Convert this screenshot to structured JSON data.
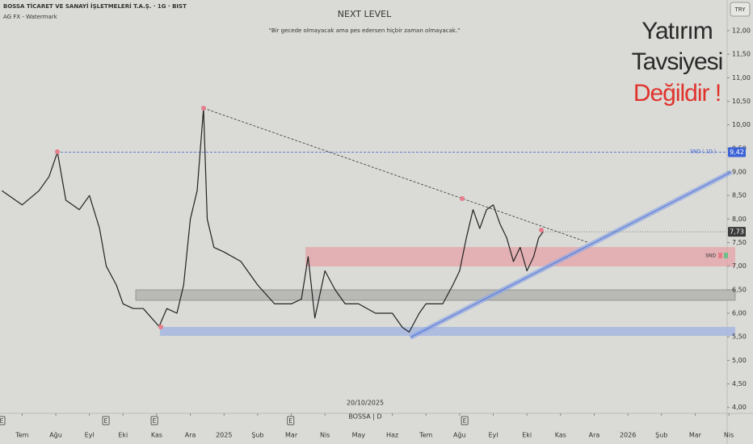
{
  "chart_data": {
    "type": "line",
    "header": {
      "symbol": "BOSSA TİCARET VE SANAYİ İŞLETMELERİ T.A.Ş. · 1G · BIST",
      "indicator": "AG FX - Watermark"
    },
    "title": "NEXT LEVEL",
    "subtitle": "\"Bir gecede olmayacak ama pes edersen hiçbir zaman olmayacak.\"",
    "watermark": [
      "Yatırım",
      "Tavsiyesi",
      "Değildir !"
    ],
    "currency": "TRY",
    "zone_label": "SND",
    "level_label": "SND ( 1D )",
    "date_label": "20/10/2025",
    "symbol_label": "BOSSA | D",
    "series": [
      {
        "name": "BOSSA",
        "color": "#222222",
        "x": [
          -0.6,
          0,
          0.5,
          0.8,
          1.05,
          1.3,
          1.7,
          2.0,
          2.3,
          2.5,
          2.8,
          3.0,
          3.3,
          3.6,
          4.07,
          4.3,
          4.6,
          4.8,
          5.0,
          5.2,
          5.39,
          5.5,
          5.7,
          6.0,
          6.5,
          7.0,
          7.5,
          8.0,
          8.3,
          8.5,
          8.7,
          9.0,
          9.3,
          9.6,
          10.0,
          10.5,
          11.0,
          11.3,
          11.5,
          11.8,
          12.0,
          12.5,
          12.8,
          13.0,
          13.2,
          13.4,
          13.6,
          13.8,
          14.0,
          14.2,
          14.4,
          14.6,
          14.8,
          15.0,
          15.2,
          15.35,
          15.48
        ],
        "values": [
          8.6,
          8.3,
          8.6,
          8.9,
          9.42,
          8.4,
          8.2,
          8.5,
          7.8,
          7.0,
          6.6,
          6.2,
          6.1,
          6.1,
          5.72,
          6.1,
          6.0,
          6.6,
          8.0,
          8.6,
          10.35,
          8.0,
          7.4,
          7.3,
          7.1,
          6.6,
          6.2,
          6.2,
          6.3,
          7.2,
          5.9,
          6.9,
          6.5,
          6.2,
          6.2,
          6.0,
          6.0,
          5.7,
          5.6,
          6.0,
          6.2,
          6.2,
          6.6,
          6.9,
          7.6,
          8.2,
          7.8,
          8.2,
          8.3,
          7.9,
          7.6,
          7.1,
          7.4,
          6.9,
          7.2,
          7.6,
          7.73
        ]
      }
    ],
    "last_price": {
      "value": 7.73,
      "label": "7,73"
    },
    "snd_level": {
      "value": 9.42,
      "label": "9,42"
    },
    "events": [
      {
        "x": -0.61,
        "label": "E"
      },
      {
        "x": 2.49,
        "label": "E"
      },
      {
        "x": 3.93,
        "label": "E"
      },
      {
        "x": 7.98,
        "label": "E"
      },
      {
        "x": 13.15,
        "label": "E"
      }
    ],
    "xlim": [
      -0.657,
      20.95
    ],
    "xticks": [
      {
        "value": 0,
        "label": "Tem"
      },
      {
        "value": 1,
        "label": "Ağu"
      },
      {
        "value": 2,
        "label": "Eyl"
      },
      {
        "value": 3,
        "label": "Eki"
      },
      {
        "value": 4,
        "label": "Kas"
      },
      {
        "value": 5,
        "label": "Ara"
      },
      {
        "value": 6,
        "label": "2025"
      },
      {
        "value": 7,
        "label": "Şub"
      },
      {
        "value": 8,
        "label": "Mar"
      },
      {
        "value": 9,
        "label": "Nis"
      },
      {
        "value": 10,
        "label": "May"
      },
      {
        "value": 11,
        "label": "Haz"
      },
      {
        "value": 12,
        "label": "Tem"
      },
      {
        "value": 13,
        "label": "Ağu"
      },
      {
        "value": 14,
        "label": "Eyl"
      },
      {
        "value": 15,
        "label": "Eki"
      },
      {
        "value": 16,
        "label": "Kas"
      },
      {
        "value": 17,
        "label": "Ara"
      },
      {
        "value": 18,
        "label": "2026"
      },
      {
        "value": 19,
        "label": "Şub"
      },
      {
        "value": 20,
        "label": "Mar"
      },
      {
        "value": 21,
        "label": "Nis"
      }
    ],
    "ylim": [
      3.91,
      12.65
    ],
    "yticks": [
      {
        "value": 4,
        "label": "4,00"
      },
      {
        "value": 4.5,
        "label": "4,50"
      },
      {
        "value": 5,
        "label": "5,00"
      },
      {
        "value": 5.5,
        "label": "5,50"
      },
      {
        "value": 6,
        "label": "6,00"
      },
      {
        "value": 6.5,
        "label": "6,50"
      },
      {
        "value": 7,
        "label": "7,00"
      },
      {
        "value": 7.5,
        "label": "7,50"
      },
      {
        "value": 8,
        "label": "8,00"
      },
      {
        "value": 8.5,
        "label": "8,50"
      },
      {
        "value": 9,
        "label": "9,00"
      },
      {
        "value": 9.5,
        "label": "9,50"
      },
      {
        "value": 10,
        "label": "10,00"
      },
      {
        "value": 10.5,
        "label": "10,50"
      },
      {
        "value": 11,
        "label": "11,00"
      },
      {
        "value": 11.5,
        "label": "11,50"
      },
      {
        "value": 12,
        "label": "12,00"
      }
    ],
    "grid": false
  }
}
